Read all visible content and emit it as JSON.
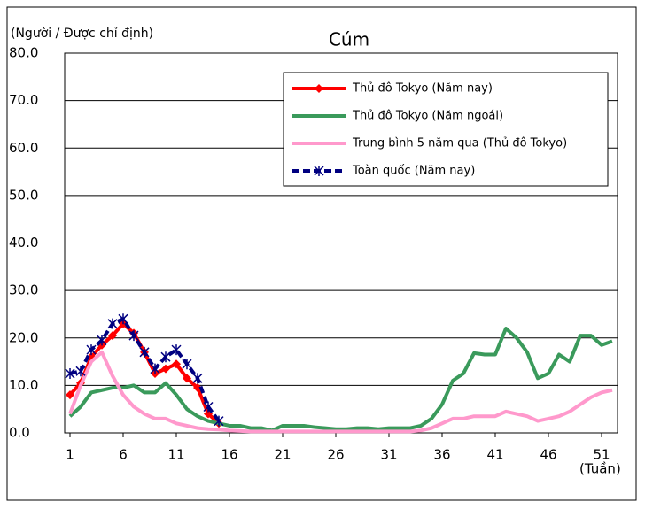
{
  "chart_data": {
    "type": "line",
    "title": "Cúm",
    "ylabel": "(Người / Được chỉ định)",
    "xlabel": "(Tuần)",
    "x": [
      1,
      2,
      3,
      4,
      5,
      6,
      7,
      8,
      9,
      10,
      11,
      12,
      13,
      14,
      15,
      16,
      17,
      18,
      19,
      20,
      21,
      22,
      23,
      24,
      25,
      26,
      27,
      28,
      29,
      30,
      31,
      32,
      33,
      34,
      35,
      36,
      37,
      38,
      39,
      40,
      41,
      42,
      43,
      44,
      45,
      46,
      47,
      48,
      49,
      50,
      51,
      52
    ],
    "xlim": [
      0.5,
      52.5
    ],
    "xticks": [
      1,
      6,
      11,
      16,
      21,
      26,
      31,
      36,
      41,
      46,
      51
    ],
    "ylim": [
      0,
      80
    ],
    "yticks": [
      {
        "value": 0,
        "label": "0.0"
      },
      {
        "value": 10,
        "label": "10.0"
      },
      {
        "value": 20,
        "label": "20.0"
      },
      {
        "value": 30,
        "label": "30.0"
      },
      {
        "value": 40,
        "label": "40.0"
      },
      {
        "value": 50,
        "label": "50.0"
      },
      {
        "value": 60,
        "label": "60.0"
      },
      {
        "value": 70,
        "label": "70.0"
      },
      {
        "value": 80,
        "label": "80.0"
      }
    ],
    "grid": true,
    "legend": "upper right",
    "series": [
      {
        "name": "Thủ đô Tokyo (Năm nay)",
        "color": "#ff0000",
        "marker": "diamond",
        "values": [
          8,
          10.5,
          16,
          18.5,
          20.5,
          23,
          21,
          17,
          12.5,
          13.5,
          14.5,
          11.5,
          9.5,
          4,
          2,
          null,
          null,
          null,
          null,
          null,
          null,
          null,
          null,
          null,
          null,
          null,
          null,
          null,
          null,
          null,
          null,
          null,
          null,
          null,
          null,
          null,
          null,
          null,
          null,
          null,
          null,
          null,
          null,
          null,
          null,
          null,
          null,
          null,
          null,
          null,
          null,
          null
        ]
      },
      {
        "name": "Thủ đô Tokyo (Năm ngoái)",
        "color": "#3a9a5b",
        "values": [
          3.5,
          5.5,
          8.5,
          9,
          9.5,
          9.5,
          10,
          8.5,
          8.5,
          10.5,
          8,
          5,
          3.5,
          2.5,
          2,
          1.5,
          1.5,
          1,
          1,
          0.5,
          1.5,
          1.5,
          1.5,
          1.2,
          1,
          0.8,
          0.8,
          1,
          1,
          0.8,
          1,
          1,
          1,
          1.5,
          3,
          6,
          11,
          12.5,
          16.8,
          16.5,
          16.5,
          22,
          20,
          17,
          11.5,
          12.5,
          16.5,
          15,
          20.5,
          20.5,
          18.5,
          19.3
        ]
      },
      {
        "name": "Trung bình 5 năm qua (Thủ đô Tokyo)",
        "color": "#ff99cc",
        "values": [
          4,
          10,
          15,
          17,
          12,
          8,
          5.5,
          4,
          3,
          3,
          2,
          1.5,
          1,
          0.8,
          0.7,
          0.5,
          0.4,
          0.3,
          0.3,
          0.3,
          0.3,
          0.3,
          0.3,
          0.3,
          0.3,
          0.3,
          0.3,
          0.3,
          0.3,
          0.3,
          0.3,
          0.3,
          0.3,
          0.5,
          1,
          2,
          3,
          3,
          3.5,
          3.5,
          3.5,
          4.5,
          4,
          3.5,
          2.5,
          3,
          3.5,
          4.5,
          6,
          7.5,
          8.5,
          9
        ]
      },
      {
        "name": "Toàn quốc (Năm nay)",
        "color": "#000080",
        "marker": "asterisk",
        "dash": true,
        "values": [
          12.5,
          13,
          17.5,
          19.5,
          23,
          24,
          20.5,
          17,
          13.5,
          16,
          17.5,
          14.5,
          11.5,
          5.5,
          2.5,
          null,
          null,
          null,
          null,
          null,
          null,
          null,
          null,
          null,
          null,
          null,
          null,
          null,
          null,
          null,
          null,
          null,
          null,
          null,
          null,
          null,
          null,
          null,
          null,
          null,
          null,
          null,
          null,
          null,
          null,
          null,
          null,
          null,
          null,
          null,
          null,
          null
        ]
      }
    ]
  }
}
